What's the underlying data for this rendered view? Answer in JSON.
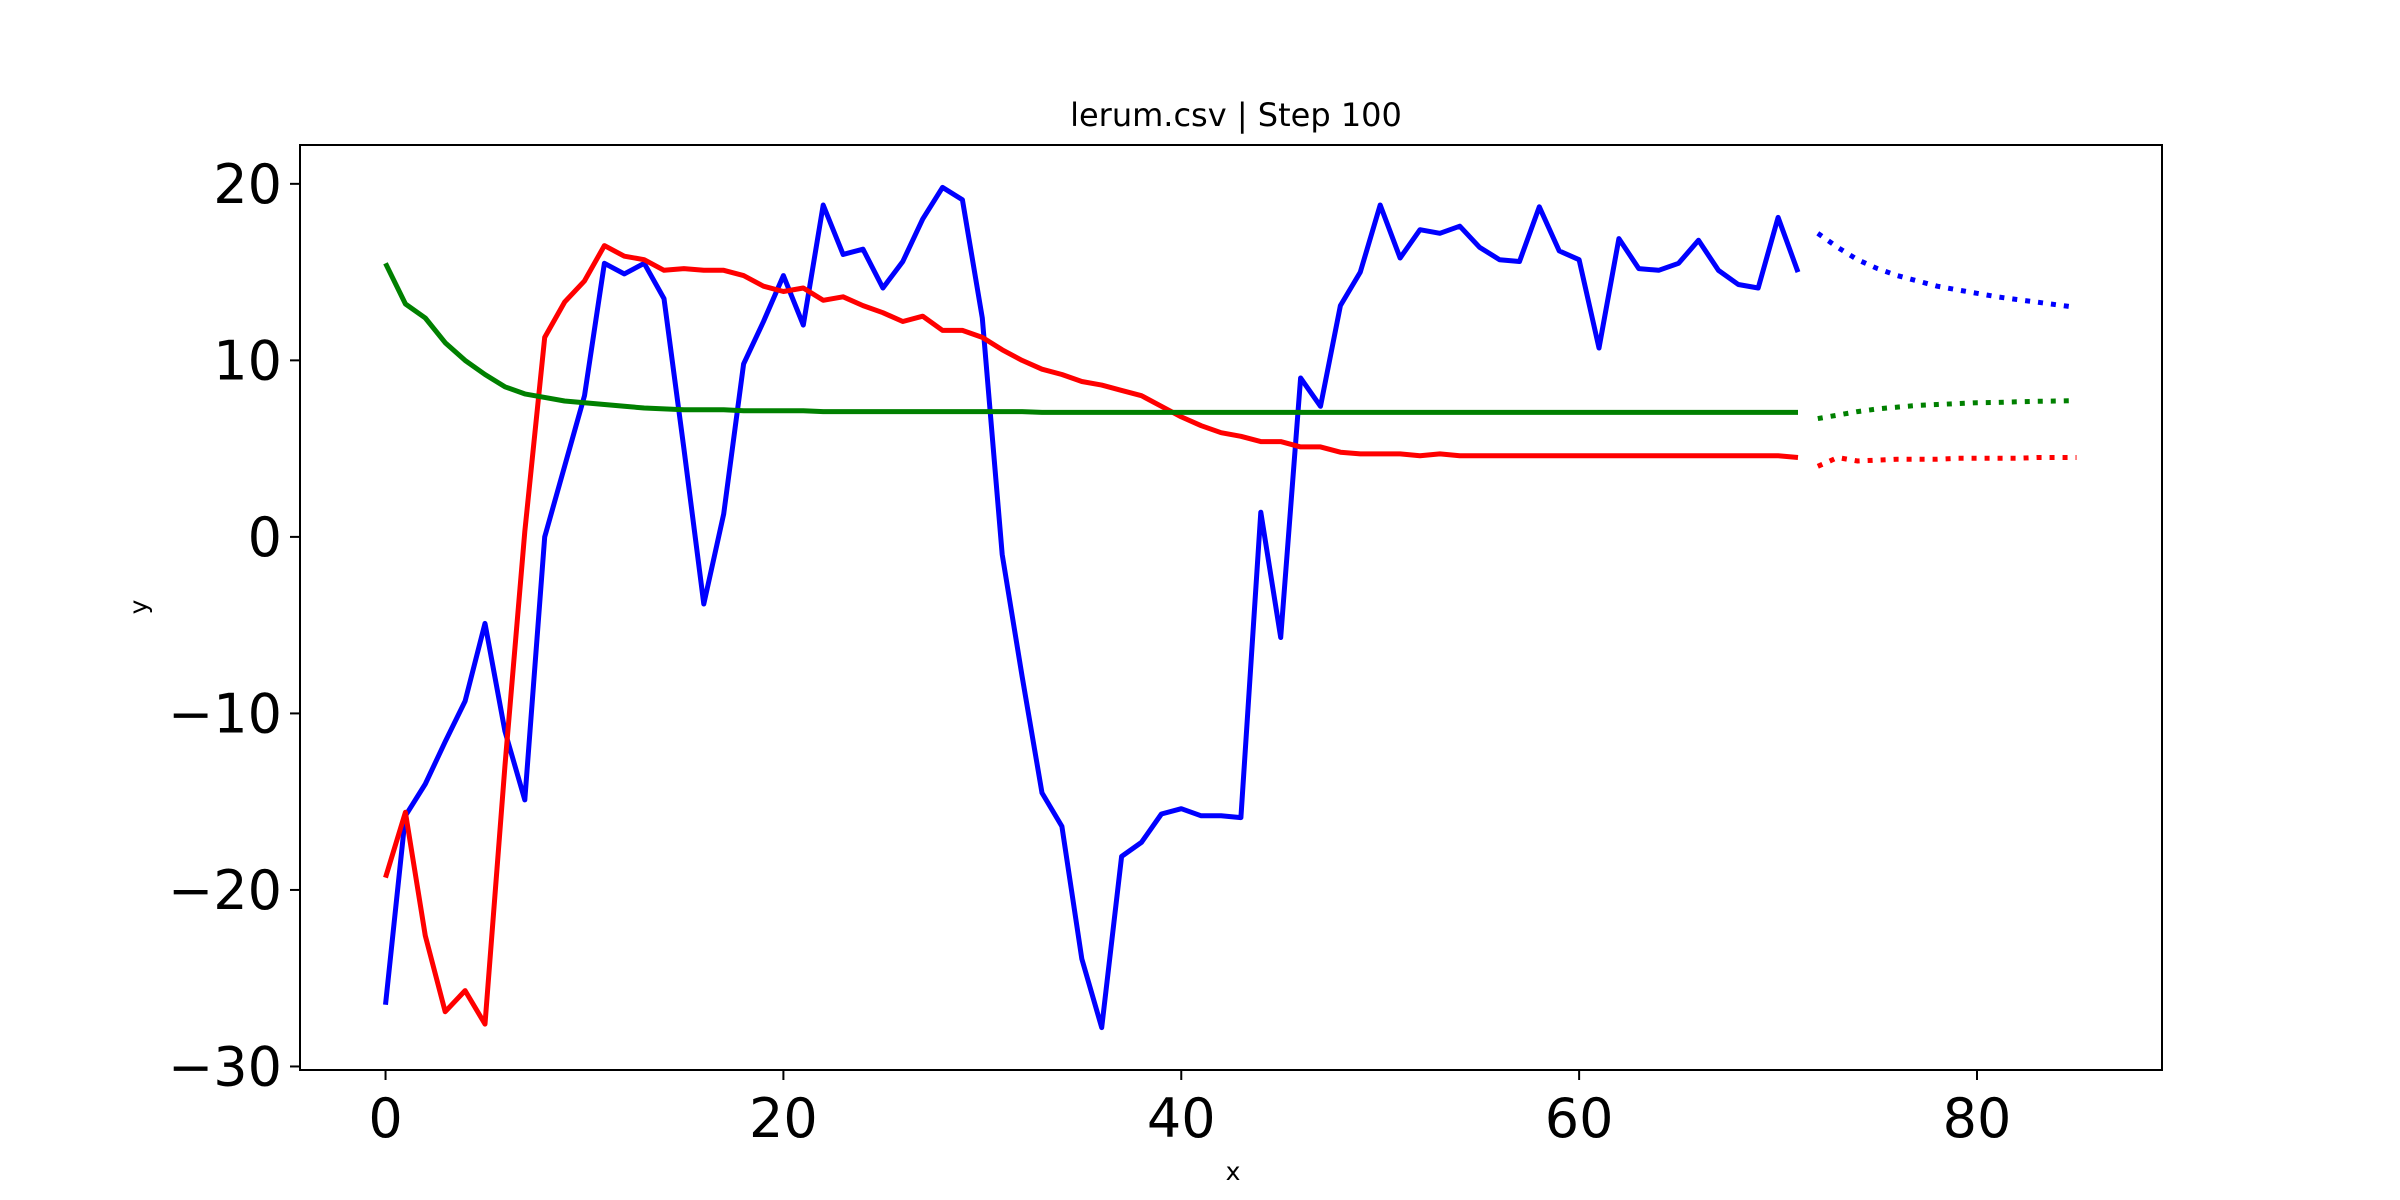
{
  "chart_data": {
    "type": "line",
    "title": "lerum.csv | Step 100",
    "xlabel": "x",
    "ylabel": "y",
    "xlim": [
      -4.3,
      89.3
    ],
    "ylim": [
      -30.2,
      22.2
    ],
    "xticks": [
      0,
      20,
      40,
      60,
      80
    ],
    "yticks": [
      -30,
      -20,
      -10,
      0,
      10,
      20
    ],
    "xtick_labels": [
      "0",
      "20",
      "40",
      "60",
      "80"
    ],
    "ytick_labels": [
      "−30",
      "−20",
      "−10",
      "0",
      "10",
      "20"
    ],
    "grid": false,
    "legend": "none",
    "x": [
      0,
      1,
      2,
      3,
      4,
      5,
      6,
      7,
      8,
      9,
      10,
      11,
      12,
      13,
      14,
      15,
      16,
      17,
      18,
      19,
      20,
      21,
      22,
      23,
      24,
      25,
      26,
      27,
      28,
      29,
      30,
      31,
      32,
      33,
      34,
      35,
      36,
      37,
      38,
      39,
      40,
      41,
      42,
      43,
      44,
      45,
      46,
      47,
      48,
      49,
      50,
      51,
      52,
      53,
      54,
      55,
      56,
      57,
      58,
      59,
      60,
      61,
      62,
      63,
      64,
      65,
      66,
      67,
      68,
      69,
      70,
      71
    ],
    "series": [
      {
        "color": "#0000ff",
        "values": [
          -26.5,
          -15.8,
          -14.0,
          -11.6,
          -9.3,
          -4.9,
          -11.0,
          -14.9,
          0.0,
          4.0,
          8.0,
          15.5,
          14.9,
          15.5,
          13.5,
          5.0,
          -3.8,
          1.3,
          9.8,
          12.2,
          14.8,
          12.0,
          18.8,
          16.0,
          16.3,
          14.1,
          15.6,
          18.0,
          19.8,
          19.1,
          12.4,
          -1.0,
          -7.9,
          -14.5,
          -16.4,
          -23.9,
          -27.8,
          -18.1,
          -17.3,
          -15.7,
          -15.4,
          -15.8,
          -15.8,
          -15.9,
          1.4,
          -5.7,
          9.0,
          7.4,
          13.1,
          15.0,
          18.8,
          15.8,
          17.4,
          17.2,
          17.6,
          16.4,
          15.7,
          15.6,
          18.7,
          16.2,
          15.7,
          10.7,
          16.9,
          15.2,
          15.1,
          15.5,
          16.8,
          15.1,
          14.3,
          14.1,
          18.1,
          15.0
        ]
      },
      {
        "color": "#ff0000",
        "values": [
          -19.3,
          -15.6,
          -22.6,
          -26.9,
          -25.7,
          -27.6,
          -13.0,
          0.3,
          11.3,
          13.3,
          14.5,
          16.5,
          15.9,
          15.7,
          15.1,
          15.2,
          15.1,
          15.1,
          14.8,
          14.2,
          13.9,
          14.1,
          13.4,
          13.6,
          13.1,
          12.7,
          12.2,
          12.5,
          11.7,
          11.7,
          11.3,
          10.6,
          10.0,
          9.5,
          9.2,
          8.8,
          8.6,
          8.3,
          8.0,
          7.4,
          6.8,
          6.3,
          5.9,
          5.7,
          5.4,
          5.4,
          5.1,
          5.1,
          4.8,
          4.7,
          4.7,
          4.7,
          4.6,
          4.7,
          4.6,
          4.6,
          4.6,
          4.6,
          4.6,
          4.6,
          4.6,
          4.6,
          4.6,
          4.6,
          4.6,
          4.6,
          4.6,
          4.6,
          4.6,
          4.6,
          4.6,
          4.5
        ]
      },
      {
        "color": "#008000",
        "values": [
          15.5,
          13.2,
          12.4,
          11.0,
          10.0,
          9.2,
          8.5,
          8.1,
          7.9,
          7.7,
          7.6,
          7.5,
          7.4,
          7.3,
          7.25,
          7.2,
          7.2,
          7.2,
          7.15,
          7.15,
          7.15,
          7.15,
          7.1,
          7.1,
          7.1,
          7.1,
          7.1,
          7.1,
          7.1,
          7.1,
          7.1,
          7.1,
          7.1,
          7.05,
          7.05,
          7.05,
          7.05,
          7.05,
          7.05,
          7.05,
          7.05,
          7.05,
          7.05,
          7.05,
          7.05,
          7.05,
          7.05,
          7.05,
          7.05,
          7.05,
          7.05,
          7.05,
          7.05,
          7.05,
          7.05,
          7.05,
          7.05,
          7.05,
          7.05,
          7.05,
          7.05,
          7.05,
          7.05,
          7.05,
          7.05,
          7.05,
          7.05,
          7.05,
          7.05,
          7.05,
          7.05,
          7.05
        ]
      }
    ],
    "forecast": {
      "style": "dotted",
      "x": [
        72,
        73,
        74,
        75,
        76,
        77,
        78,
        79,
        80,
        81,
        82,
        83,
        84,
        85
      ],
      "series": [
        {
          "color": "#0000ff",
          "values": [
            17.2,
            16.4,
            15.7,
            15.2,
            14.8,
            14.5,
            14.2,
            14.0,
            13.8,
            13.6,
            13.45,
            13.3,
            13.15,
            13.0
          ]
        },
        {
          "color": "#008000",
          "values": [
            6.7,
            6.9,
            7.1,
            7.25,
            7.35,
            7.45,
            7.5,
            7.55,
            7.6,
            7.62,
            7.65,
            7.68,
            7.7,
            7.72
          ]
        },
        {
          "color": "#ff0000",
          "values": [
            4.0,
            4.5,
            4.3,
            4.35,
            4.4,
            4.4,
            4.4,
            4.45,
            4.45,
            4.45,
            4.45,
            4.5,
            4.5,
            4.5
          ]
        }
      ]
    }
  }
}
